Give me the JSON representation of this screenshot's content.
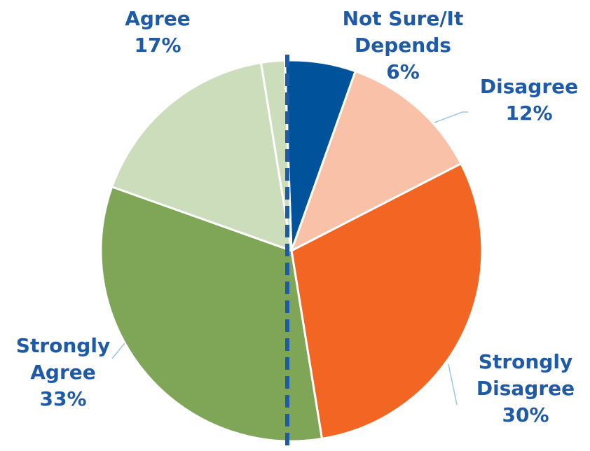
{
  "chart_data": {
    "type": "pie",
    "title": "",
    "start_angle_deg": -2,
    "direction": "clockwise",
    "slices": [
      {
        "name": "Not Sure/It Depends",
        "label_lines": [
          "Not Sure/It",
          "Depends",
          "6%"
        ],
        "value": 6,
        "color": "#00529B"
      },
      {
        "name": "Disagree",
        "label_lines": [
          "Disagree",
          "12%"
        ],
        "value": 12,
        "color": "#F9C2A8"
      },
      {
        "name": "Strongly Disagree",
        "label_lines": [
          "Strongly",
          "Disagree",
          "30%"
        ],
        "value": 30,
        "color": "#F26522"
      },
      {
        "name": "Strongly Agree",
        "label_lines": [
          "Strongly",
          "Agree",
          "33%"
        ],
        "value": 33,
        "color": "#7FA657"
      },
      {
        "name": "Agree",
        "label_lines": [
          "Agree",
          "17%"
        ],
        "value": 17,
        "color": "#CCDDBB"
      },
      {
        "name": "unlabeled",
        "label_lines": [],
        "value": 2,
        "color": "#CCDDBB"
      }
    ],
    "divider": {
      "style": "dashed",
      "color": "#1F5AA6"
    },
    "label_color": "#1F5AA6",
    "leader_line_color": "#9DC3E6"
  }
}
